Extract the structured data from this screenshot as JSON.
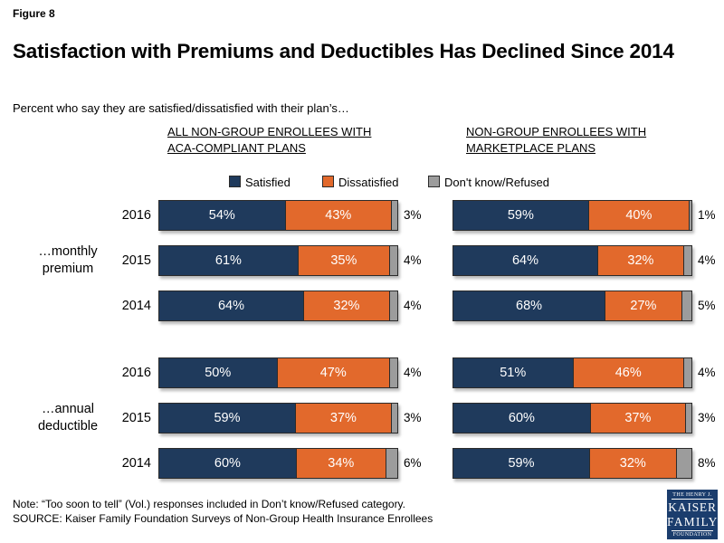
{
  "figure_label": "Figure 8",
  "title": "Satisfaction with Premiums and Deductibles Has Declined Since 2014",
  "subtitle": "Percent who say they are satisfied/dissatisfied with their plan’s…",
  "legend": {
    "satisfied": "Satisfied",
    "dissatisfied": "Dissatisfied",
    "dont_know": "Don't know/Refused"
  },
  "colors": {
    "satisfied": "#1f3a5c",
    "dissatisfied": "#e2692c",
    "dont_know": "#9c9c9c",
    "segment_border": "#2b2b2b",
    "logo_bg": "#1b3d6d"
  },
  "chart_data": {
    "type": "bar",
    "variant": "horizontal-stacked",
    "unit": "percent",
    "axis_range": [
      0,
      100
    ],
    "series_names": [
      "Satisfied",
      "Dissatisfied",
      "Don't know/Refused"
    ],
    "panels": [
      {
        "header_lines": [
          "ALL NON-GROUP ENROLLEES WITH",
          "ACA-COMPLIANT PLANS"
        ],
        "groups": [
          {
            "label_lines": [
              "…monthly",
              "premium"
            ],
            "rows": [
              {
                "year": "2016",
                "satisfied": 54,
                "dissatisfied": 43,
                "dont_know": 3
              },
              {
                "year": "2015",
                "satisfied": 61,
                "dissatisfied": 35,
                "dont_know": 4
              },
              {
                "year": "2014",
                "satisfied": 64,
                "dissatisfied": 32,
                "dont_know": 4
              }
            ]
          },
          {
            "label_lines": [
              "…annual",
              "deductible"
            ],
            "rows": [
              {
                "year": "2016",
                "satisfied": 50,
                "dissatisfied": 47,
                "dont_know": 4
              },
              {
                "year": "2015",
                "satisfied": 59,
                "dissatisfied": 37,
                "dont_know": 3
              },
              {
                "year": "2014",
                "satisfied": 60,
                "dissatisfied": 34,
                "dont_know": 6
              }
            ]
          }
        ]
      },
      {
        "header_lines": [
          "NON-GROUP ENROLLEES WITH",
          "MARKETPLACE PLANS"
        ],
        "groups": [
          {
            "rows": [
              {
                "year": "2016",
                "satisfied": 59,
                "dissatisfied": 40,
                "dont_know": 1
              },
              {
                "year": "2015",
                "satisfied": 64,
                "dissatisfied": 32,
                "dont_know": 4
              },
              {
                "year": "2014",
                "satisfied": 68,
                "dissatisfied": 27,
                "dont_know": 5
              }
            ]
          },
          {
            "rows": [
              {
                "year": "2016",
                "satisfied": 51,
                "dissatisfied": 46,
                "dont_know": 4
              },
              {
                "year": "2015",
                "satisfied": 60,
                "dissatisfied": 37,
                "dont_know": 3
              },
              {
                "year": "2014",
                "satisfied": 59,
                "dissatisfied": 32,
                "dont_know": 8
              }
            ]
          }
        ]
      }
    ]
  },
  "notes": {
    "note": "Note: “Too soon to tell” (Vol.) responses included in Don’t know/Refused category.",
    "source": "SOURCE: Kaiser Family Foundation Surveys of Non-Group Health Insurance Enrollees"
  },
  "logo": {
    "line1": "THE HENRY J.",
    "line2": "KAISER",
    "line3": "FAMILY",
    "line4": "FOUNDATION"
  }
}
